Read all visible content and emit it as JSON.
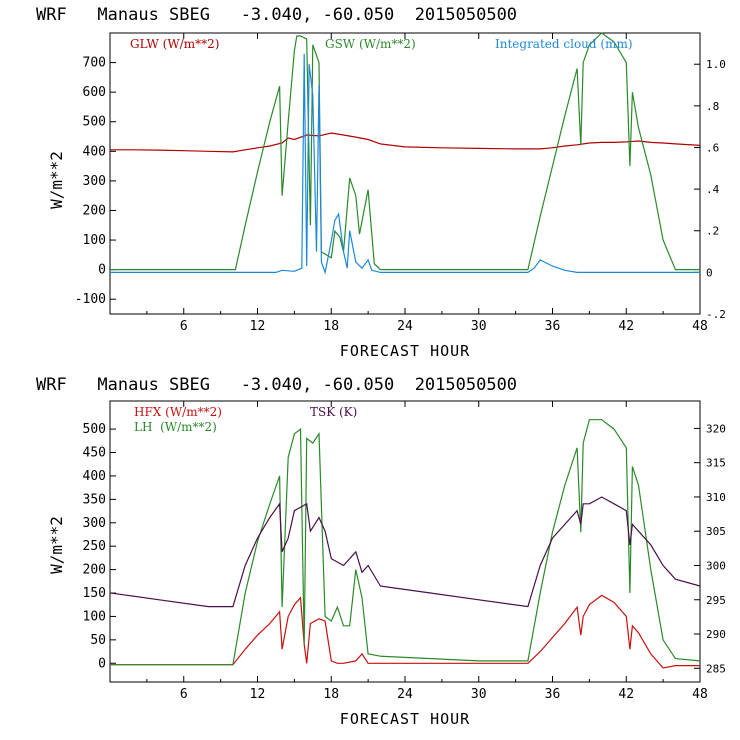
{
  "chart_data": [
    {
      "type": "line",
      "title": "WRF   Manaus SBEG   -3.040, -60.050  2015050500",
      "xlabel": "FORECAST HOUR",
      "ylabel": "W/m**2",
      "xlim": [
        0,
        48
      ],
      "ylim": [
        -150,
        800
      ],
      "y2lim": [
        -0.2,
        1.15
      ],
      "xticks": [
        "6",
        "12",
        "18",
        "24",
        "30",
        "36",
        "42",
        "48"
      ],
      "yticks": [
        "-100",
        "0",
        "100",
        "200",
        "300",
        "400",
        "500",
        "600",
        "700"
      ],
      "y2ticks": [
        "-.2",
        "0",
        ".2",
        ".4",
        ".6",
        ".8",
        "1.0"
      ],
      "grid": false,
      "legend_position": "top",
      "series": [
        {
          "name": "GLW (W/m**2)",
          "color": "#b00000",
          "axis": "left",
          "x": [
            0,
            2,
            4,
            6,
            8,
            10,
            11,
            12,
            13,
            14,
            14.5,
            15,
            16,
            17,
            18,
            19,
            20,
            21,
            22,
            24,
            27,
            30,
            33,
            35,
            36,
            37,
            38,
            39,
            40,
            41,
            42,
            43,
            44,
            45,
            46,
            48
          ],
          "values": [
            405,
            405,
            404,
            402,
            400,
            398,
            405,
            412,
            418,
            428,
            445,
            440,
            455,
            452,
            462,
            455,
            448,
            440,
            425,
            415,
            412,
            410,
            408,
            408,
            412,
            418,
            422,
            428,
            430,
            430,
            432,
            435,
            430,
            428,
            425,
            420
          ]
        },
        {
          "name": "GSW (W/m**2)",
          "color": "#2a8a2a",
          "axis": "left",
          "x": [
            0,
            10.2,
            11,
            12,
            13,
            13.8,
            14,
            14.5,
            15,
            15.2,
            15.5,
            16,
            16.3,
            16.5,
            17,
            17.2,
            18,
            18.3,
            18.7,
            19,
            19.5,
            20,
            20.3,
            21,
            21.5,
            22,
            24,
            30,
            34,
            35,
            36,
            37,
            38,
            38.3,
            38.5,
            39,
            40,
            41,
            42,
            42.3,
            42.5,
            43,
            44,
            45,
            45.8,
            46,
            48
          ],
          "values": [
            0,
            0,
            150,
            330,
            500,
            620,
            250,
            500,
            740,
            790,
            790,
            780,
            150,
            760,
            700,
            60,
            40,
            130,
            110,
            60,
            310,
            250,
            120,
            270,
            20,
            0,
            0,
            0,
            0,
            180,
            350,
            520,
            680,
            420,
            700,
            760,
            800,
            770,
            700,
            350,
            600,
            480,
            320,
            100,
            20,
            0,
            0
          ]
        },
        {
          "name": "Integrated cloud (mm)",
          "color": "#1e88d8",
          "axis": "right",
          "x": [
            0,
            13.5,
            14,
            15,
            15.6,
            15.8,
            16,
            16.2,
            16.5,
            16.8,
            17,
            17.2,
            17.5,
            18,
            18.3,
            18.6,
            19,
            19.3,
            19.5,
            20,
            20.5,
            21,
            21.3,
            22,
            34,
            34.5,
            35,
            36,
            37,
            38,
            48
          ],
          "values": [
            0,
            0,
            0.01,
            0.005,
            0.02,
            1.05,
            0.03,
            1.0,
            0.85,
            0.1,
            0.9,
            0.05,
            0,
            0.15,
            0.25,
            0.28,
            0.1,
            0.02,
            0.2,
            0.05,
            0.02,
            0.06,
            0.01,
            0,
            0,
            0.02,
            0.06,
            0.03,
            0.01,
            0,
            0
          ]
        }
      ]
    },
    {
      "type": "line",
      "title": "WRF   Manaus SBEG   -3.040, -60.050  2015050500",
      "xlabel": "FORECAST HOUR",
      "ylabel": "W/m**2",
      "xlim": [
        0,
        48
      ],
      "ylim": [
        -40,
        560
      ],
      "y2lim": [
        283,
        324
      ],
      "xticks": [
        "6",
        "12",
        "18",
        "24",
        "30",
        "36",
        "42",
        "48"
      ],
      "yticks": [
        "0",
        "50",
        "100",
        "150",
        "200",
        "250",
        "300",
        "350",
        "400",
        "450",
        "500"
      ],
      "y2ticks": [
        "285",
        "290",
        "295",
        "300",
        "305",
        "310",
        "315",
        "320"
      ],
      "grid": false,
      "legend_position": "top-left",
      "series": [
        {
          "name": "HFX (W/m**2)",
          "color": "#c81010",
          "axis": "left",
          "x": [
            0,
            10,
            11,
            12,
            13,
            13.8,
            14,
            14.5,
            15,
            15.5,
            15.8,
            16,
            16.3,
            17,
            17.5,
            18,
            18.5,
            19,
            20,
            20.5,
            21,
            22,
            30,
            34,
            35,
            36,
            37,
            38,
            38.3,
            38.5,
            39,
            40,
            41,
            42,
            42.3,
            42.5,
            43,
            44,
            45,
            46,
            48
          ],
          "values": [
            -3,
            -3,
            30,
            60,
            85,
            110,
            30,
            100,
            125,
            140,
            40,
            0,
            85,
            95,
            90,
            5,
            0,
            0,
            5,
            20,
            0,
            0,
            0,
            0,
            25,
            55,
            85,
            120,
            60,
            100,
            125,
            145,
            130,
            100,
            30,
            80,
            65,
            20,
            -10,
            -5,
            -5
          ]
        },
        {
          "name": "LH  (W/m**2)",
          "color": "#2a8a2a",
          "axis": "left",
          "x": [
            0,
            10,
            11,
            12,
            13,
            13.8,
            14,
            14.5,
            15,
            15.5,
            15.8,
            16,
            16.5,
            17,
            17.5,
            18,
            18.5,
            19,
            19.5,
            20,
            20.5,
            21,
            22,
            30,
            34,
            35,
            36,
            37,
            38,
            38.3,
            38.5,
            39,
            40,
            41,
            42,
            42.3,
            42.5,
            43,
            44,
            45,
            46,
            48
          ],
          "values": [
            -3,
            -3,
            150,
            260,
            340,
            400,
            120,
            440,
            490,
            500,
            40,
            480,
            470,
            490,
            100,
            90,
            120,
            80,
            80,
            200,
            140,
            20,
            15,
            5,
            5,
            150,
            280,
            380,
            460,
            280,
            470,
            520,
            520,
            500,
            460,
            150,
            420,
            380,
            200,
            50,
            10,
            5
          ]
        },
        {
          "name": "TSK (K)",
          "color": "#4a104a",
          "axis": "right",
          "x": [
            0,
            4,
            8,
            10,
            11,
            12,
            13,
            13.8,
            14,
            14.5,
            15,
            16,
            16.3,
            17,
            17.5,
            18,
            19,
            20,
            20.5,
            21,
            22,
            26,
            30,
            34,
            35,
            36,
            37,
            38,
            38.3,
            38.5,
            39,
            40,
            41,
            42,
            42.3,
            42.5,
            43,
            44,
            45,
            46,
            48
          ],
          "values": [
            296,
            295,
            294,
            294,
            300,
            304,
            307,
            309,
            302,
            304,
            308,
            309,
            305,
            307,
            305,
            301,
            300,
            302,
            299,
            300,
            297,
            296,
            295,
            294,
            300,
            304,
            306,
            308,
            306,
            309,
            309,
            310,
            309,
            308,
            303,
            306,
            305,
            303,
            300,
            298,
            297
          ]
        }
      ]
    }
  ]
}
